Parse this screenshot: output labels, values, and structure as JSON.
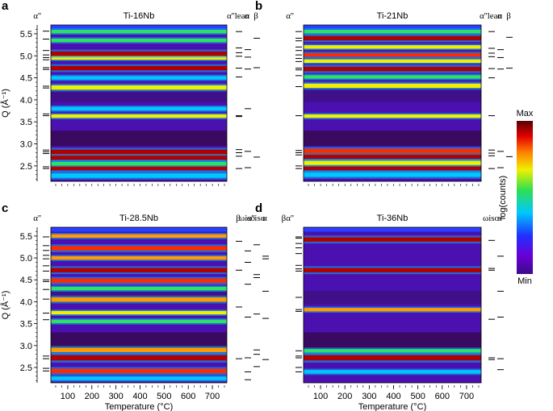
{
  "colorbar": {
    "max_label": "Max",
    "min_label": "Min",
    "axis_label": "log(counts)"
  },
  "chart_data": [
    {
      "type": "heatmap",
      "panel_letter": "a",
      "title": "Ti-16Nb",
      "xlabel": "",
      "ylabel": "Q (Å⁻¹)",
      "xlim": [
        30,
        760
      ],
      "ylim": [
        2.15,
        5.7
      ],
      "y_ticks": [
        2.5,
        3.0,
        3.5,
        4.0,
        4.5,
        5.0,
        5.5
      ],
      "y_tick_labels": [
        "2.5",
        "3.0",
        "3.5",
        "4.0",
        "4.5",
        "5.0",
        "5.5"
      ],
      "x_tick_labels": [],
      "left_phase_label": "α''",
      "right_phase_labels": [
        "α''lean",
        "α",
        "β"
      ],
      "bands": [
        {
          "q": 2.28,
          "w": 0.05,
          "s": 0.45
        },
        {
          "q": 2.45,
          "w": 0.05,
          "s": 0.95
        },
        {
          "q": 2.55,
          "w": 0.04,
          "s": 0.6
        },
        {
          "q": 2.7,
          "w": 0.06,
          "s": 1.0
        },
        {
          "q": 2.82,
          "w": 0.05,
          "s": 0.95
        },
        {
          "q": 3.63,
          "w": 0.04,
          "s": 0.7
        },
        {
          "q": 3.8,
          "w": 0.04,
          "s": 0.4
        },
        {
          "q": 4.28,
          "w": 0.05,
          "s": 0.75
        },
        {
          "q": 4.5,
          "w": 0.04,
          "s": 0.5
        },
        {
          "q": 4.72,
          "w": 0.05,
          "s": 0.95
        },
        {
          "q": 4.95,
          "w": 0.04,
          "s": 0.65
        },
        {
          "q": 5.05,
          "w": 0.05,
          "s": 0.95
        },
        {
          "q": 5.35,
          "w": 0.04,
          "s": 0.6
        },
        {
          "q": 5.55,
          "w": 0.04,
          "s": 0.55
        }
      ],
      "left_marks": [
        2.44,
        2.48,
        2.78,
        2.82,
        2.86,
        3.64,
        3.68,
        4.27,
        4.31,
        4.69,
        4.73,
        4.91,
        4.96,
        5.02,
        5.12,
        5.38,
        5.56
      ],
      "right_marks": [
        {
          "q": 2.44,
          "col": 0
        },
        {
          "q": 2.72,
          "col": 0
        },
        {
          "q": 2.8,
          "col": 0
        },
        {
          "q": 2.87,
          "col": 0
        },
        {
          "q": 3.62,
          "col": 0
        },
        {
          "q": 3.64,
          "col": 0
        },
        {
          "q": 4.52,
          "col": 0
        },
        {
          "q": 4.72,
          "col": 0
        },
        {
          "q": 4.99,
          "col": 0
        },
        {
          "q": 5.07,
          "col": 0
        },
        {
          "q": 5.18,
          "col": 0
        },
        {
          "q": 5.55,
          "col": 0
        },
        {
          "q": 2.46,
          "col": 1
        },
        {
          "q": 2.83,
          "col": 1
        },
        {
          "q": 3.8,
          "col": 1
        },
        {
          "q": 4.7,
          "col": 1
        },
        {
          "q": 4.97,
          "col": 1
        },
        {
          "q": 5.14,
          "col": 1
        },
        {
          "q": 2.7,
          "col": 2
        },
        {
          "q": 4.73,
          "col": 2
        },
        {
          "q": 5.4,
          "col": 2
        }
      ]
    },
    {
      "type": "heatmap",
      "panel_letter": "b",
      "title": "Ti-21Nb",
      "xlabel": "",
      "ylabel": "",
      "xlim": [
        30,
        760
      ],
      "ylim": [
        2.15,
        5.7
      ],
      "y_ticks": [],
      "y_tick_labels": [],
      "x_tick_labels": [],
      "left_phase_label": "α''",
      "right_phase_labels": [
        "α''lean",
        "α",
        "β"
      ],
      "bands": [
        {
          "q": 2.3,
          "w": 0.05,
          "s": 0.4
        },
        {
          "q": 2.45,
          "w": 0.05,
          "s": 1.0
        },
        {
          "q": 2.57,
          "w": 0.05,
          "s": 0.75
        },
        {
          "q": 2.72,
          "w": 0.06,
          "s": 1.0
        },
        {
          "q": 2.84,
          "w": 0.05,
          "s": 0.9
        },
        {
          "q": 3.63,
          "w": 0.04,
          "s": 0.7
        },
        {
          "q": 4.32,
          "w": 0.05,
          "s": 0.65
        },
        {
          "q": 4.52,
          "w": 0.04,
          "s": 0.55
        },
        {
          "q": 4.7,
          "w": 0.05,
          "s": 0.95
        },
        {
          "q": 4.88,
          "w": 0.04,
          "s": 0.7
        },
        {
          "q": 5.02,
          "w": 0.04,
          "s": 0.9
        },
        {
          "q": 5.2,
          "w": 0.04,
          "s": 0.75
        },
        {
          "q": 5.4,
          "w": 0.05,
          "s": 0.95
        },
        {
          "q": 5.55,
          "w": 0.04,
          "s": 0.6
        }
      ],
      "left_marks": [
        2.44,
        2.5,
        2.75,
        2.8,
        2.85,
        3.64,
        4.3,
        4.55,
        4.68,
        4.72,
        4.87,
        4.94,
        5.02,
        5.12,
        5.2,
        5.34,
        5.4,
        5.55
      ],
      "right_marks": [
        {
          "q": 2.44,
          "col": 0
        },
        {
          "q": 2.73,
          "col": 0
        },
        {
          "q": 2.79,
          "col": 0
        },
        {
          "q": 2.86,
          "col": 0
        },
        {
          "q": 3.64,
          "col": 0
        },
        {
          "q": 4.5,
          "col": 0
        },
        {
          "q": 4.71,
          "col": 0
        },
        {
          "q": 4.98,
          "col": 0
        },
        {
          "q": 5.06,
          "col": 0
        },
        {
          "q": 5.17,
          "col": 0
        },
        {
          "q": 5.55,
          "col": 0
        },
        {
          "q": 2.46,
          "col": 1
        },
        {
          "q": 2.83,
          "col": 1
        },
        {
          "q": 4.7,
          "col": 1
        },
        {
          "q": 4.96,
          "col": 1
        },
        {
          "q": 5.14,
          "col": 1
        },
        {
          "q": 2.71,
          "col": 2
        },
        {
          "q": 4.72,
          "col": 2
        },
        {
          "q": 5.42,
          "col": 2
        }
      ]
    },
    {
      "type": "heatmap",
      "panel_letter": "c",
      "title": "Ti-28.5Nb",
      "xlabel": "Temperature (°C)",
      "ylabel": "Q (Å⁻¹)",
      "xlim": [
        30,
        760
      ],
      "ylim": [
        2.15,
        5.7
      ],
      "y_ticks": [
        2.5,
        3.0,
        3.5,
        4.0,
        4.5,
        5.0,
        5.5
      ],
      "y_tick_labels": [
        "2.5",
        "3.0",
        "3.5",
        "4.0",
        "4.5",
        "5.0",
        "5.5"
      ],
      "x_ticks": [
        100,
        200,
        300,
        400,
        500,
        600,
        700
      ],
      "x_tick_labels": [
        "100",
        "200",
        "300",
        "400",
        "500",
        "600",
        "700"
      ],
      "left_phase_label": "α''",
      "right_phase_labels": [
        "β",
        "ωiso",
        "α''iso",
        "α"
      ],
      "bands": [
        {
          "q": 2.25,
          "w": 0.04,
          "s": 0.45
        },
        {
          "q": 2.42,
          "w": 0.05,
          "s": 0.9
        },
        {
          "q": 2.72,
          "w": 0.06,
          "s": 1.0
        },
        {
          "q": 2.9,
          "w": 0.05,
          "s": 0.85
        },
        {
          "q": 3.55,
          "w": 0.04,
          "s": 0.6
        },
        {
          "q": 3.75,
          "w": 0.04,
          "s": 0.65
        },
        {
          "q": 4.05,
          "w": 0.05,
          "s": 0.85
        },
        {
          "q": 4.3,
          "w": 0.04,
          "s": 0.55
        },
        {
          "q": 4.48,
          "w": 0.05,
          "s": 0.9
        },
        {
          "q": 4.72,
          "w": 0.05,
          "s": 0.95
        },
        {
          "q": 5.0,
          "w": 0.04,
          "s": 0.8
        },
        {
          "q": 5.22,
          "w": 0.05,
          "s": 0.9
        },
        {
          "q": 5.5,
          "w": 0.04,
          "s": 0.85
        }
      ],
      "left_marks": [
        2.42,
        2.48,
        2.7,
        2.76,
        3.59,
        3.74,
        4.06,
        4.28,
        4.46,
        4.5,
        4.7,
        4.82,
        4.98,
        5.06,
        5.17,
        5.28,
        5.48
      ],
      "right_marks": [
        {
          "q": 2.7,
          "col": 0
        },
        {
          "q": 3.88,
          "col": 0
        },
        {
          "q": 4.72,
          "col": 0
        },
        {
          "q": 5.38,
          "col": 0
        },
        {
          "q": 2.22,
          "col": 1
        },
        {
          "q": 2.4,
          "col": 1
        },
        {
          "q": 2.72,
          "col": 1
        },
        {
          "q": 3.65,
          "col": 1
        },
        {
          "q": 4.4,
          "col": 1
        },
        {
          "q": 4.9,
          "col": 1
        },
        {
          "q": 5.16,
          "col": 1
        },
        {
          "q": 2.52,
          "col": 2
        },
        {
          "q": 2.8,
          "col": 2
        },
        {
          "q": 2.9,
          "col": 2
        },
        {
          "q": 3.72,
          "col": 2
        },
        {
          "q": 4.55,
          "col": 2
        },
        {
          "q": 4.62,
          "col": 2
        },
        {
          "q": 5.3,
          "col": 2
        },
        {
          "q": 2.68,
          "col": 3
        },
        {
          "q": 3.62,
          "col": 3
        },
        {
          "q": 4.24,
          "col": 3
        },
        {
          "q": 4.98,
          "col": 3
        },
        {
          "q": 5.04,
          "col": 3
        }
      ]
    },
    {
      "type": "heatmap",
      "panel_letter": "d",
      "title": "Ti-36Nb",
      "xlabel": "Temperature (°C)",
      "ylabel": "",
      "xlim": [
        30,
        760
      ],
      "ylim": [
        2.15,
        5.7
      ],
      "y_ticks": [],
      "y_tick_labels": [],
      "x_ticks": [
        100,
        200,
        300,
        400,
        500,
        600,
        700
      ],
      "x_tick_labels": [
        "100",
        "200",
        "300",
        "400",
        "500",
        "600",
        "700"
      ],
      "left_phase_label": "βα''",
      "right_phase_labels": [
        "ωiso",
        "α"
      ],
      "bands": [
        {
          "q": 2.4,
          "w": 0.04,
          "s": 0.5
        },
        {
          "q": 2.72,
          "w": 0.06,
          "s": 1.0
        },
        {
          "q": 2.88,
          "w": 0.04,
          "s": 0.55
        },
        {
          "q": 3.82,
          "w": 0.04,
          "s": 0.85
        },
        {
          "q": 4.72,
          "w": 0.05,
          "s": 0.95
        },
        {
          "q": 5.42,
          "w": 0.05,
          "s": 0.95
        }
      ],
      "left_marks": [
        2.4,
        2.5,
        2.72,
        2.76,
        2.88,
        3.78,
        3.82,
        4.1,
        4.7,
        4.75,
        4.83,
        5.1,
        5.23,
        5.33,
        5.45,
        5.48
      ],
      "right_marks": [
        {
          "q": 2.68,
          "col": 0
        },
        {
          "q": 2.72,
          "col": 0
        },
        {
          "q": 3.6,
          "col": 0
        },
        {
          "q": 4.72,
          "col": 0
        },
        {
          "q": 4.76,
          "col": 0
        },
        {
          "q": 5.4,
          "col": 0
        },
        {
          "q": 2.45,
          "col": 1
        },
        {
          "q": 2.7,
          "col": 1
        },
        {
          "q": 3.65,
          "col": 1
        },
        {
          "q": 4.24,
          "col": 1
        },
        {
          "q": 5.04,
          "col": 1
        }
      ]
    }
  ]
}
